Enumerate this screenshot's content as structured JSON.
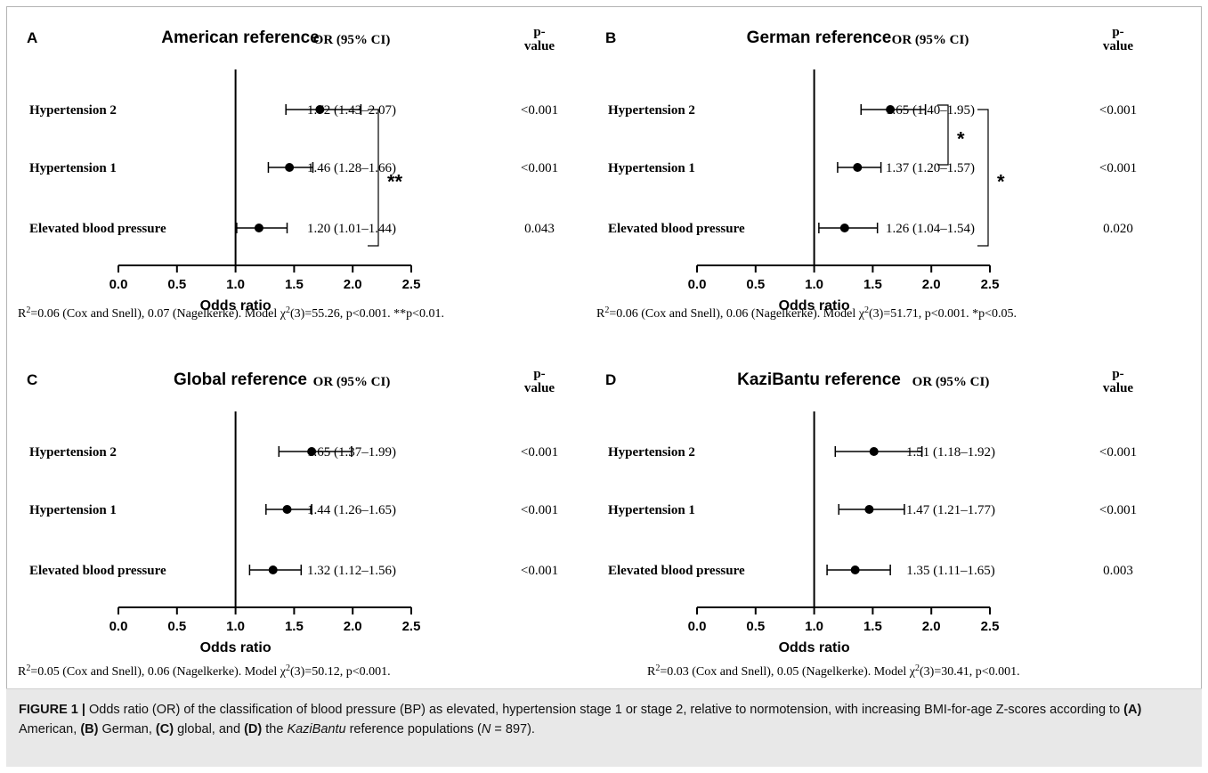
{
  "chart_data": [
    {
      "type": "forest",
      "panel_letter": "A",
      "title": "American reference",
      "col_or": "OR (95% CI)",
      "col_p": "p-value",
      "xlabel": "Odds ratio",
      "xlim": [
        0.0,
        2.5
      ],
      "xticks": [
        "0.0",
        "0.5",
        "1.0",
        "1.5",
        "2.0",
        "2.5"
      ],
      "reference_line": 1.0,
      "rows": [
        {
          "label": "Hypertension 2",
          "or": 1.72,
          "lo": 1.43,
          "hi": 2.07,
          "or_text": "1.72 (1.43–2.07)",
          "p_text": "<0.001"
        },
        {
          "label": "Hypertension 1",
          "or": 1.46,
          "lo": 1.28,
          "hi": 1.66,
          "or_text": "1.46 (1.28–1.66)",
          "p_text": "<0.001"
        },
        {
          "label": "Elevated blood pressure",
          "or": 1.2,
          "lo": 1.01,
          "hi": 1.44,
          "or_text": "1.20 (1.01–1.44)",
          "p_text": "0.043"
        }
      ],
      "brackets": [
        {
          "from_row": 0,
          "to_row": 2,
          "text": "**"
        }
      ],
      "note": {
        "pre": "R",
        "sup": "2",
        "mid": "=0.06 (Cox and Snell), 0.07 (Nagelkerke). Model χ",
        "sup2": "2",
        "post": "(3)=55.26, p<0.001. **p<0.01."
      }
    },
    {
      "type": "forest",
      "panel_letter": "B",
      "title": "German reference",
      "col_or": "OR (95% CI)",
      "col_p": "p-value",
      "xlabel": "Odds ratio",
      "xlim": [
        0.0,
        2.5
      ],
      "xticks": [
        "0.0",
        "0.5",
        "1.0",
        "1.5",
        "2.0",
        "2.5"
      ],
      "reference_line": 1.0,
      "rows": [
        {
          "label": "Hypertension 2",
          "or": 1.65,
          "lo": 1.4,
          "hi": 1.95,
          "or_text": "1.65 (1.40–1.95)",
          "p_text": "<0.001"
        },
        {
          "label": "Hypertension 1",
          "or": 1.37,
          "lo": 1.2,
          "hi": 1.57,
          "or_text": "1.37 (1.20–1.57)",
          "p_text": "<0.001"
        },
        {
          "label": "Elevated blood pressure",
          "or": 1.26,
          "lo": 1.04,
          "hi": 1.54,
          "or_text": "1.26 (1.04–1.54)",
          "p_text": "0.020"
        }
      ],
      "brackets": [
        {
          "from_row": 0,
          "to_row": 1,
          "text": "*"
        },
        {
          "from_row": 0,
          "to_row": 2,
          "text": "*"
        }
      ],
      "note": {
        "pre": "R",
        "sup": "2",
        "mid": "=0.06 (Cox and Snell), 0.06 (Nagelkerke). Model χ",
        "sup2": "2",
        "post": "(3)=51.71, p<0.001. *p<0.05."
      }
    },
    {
      "type": "forest",
      "panel_letter": "C",
      "title": "Global reference",
      "col_or": "OR (95% CI)",
      "col_p": "p-value",
      "xlabel": "Odds ratio",
      "xlim": [
        0.0,
        2.5
      ],
      "xticks": [
        "0.0",
        "0.5",
        "1.0",
        "1.5",
        "2.0",
        "2.5"
      ],
      "reference_line": 1.0,
      "rows": [
        {
          "label": "Hypertension 2",
          "or": 1.65,
          "lo": 1.37,
          "hi": 1.99,
          "or_text": "1.65 (1.37–1.99)",
          "p_text": "<0.001"
        },
        {
          "label": "Hypertension 1",
          "or": 1.44,
          "lo": 1.26,
          "hi": 1.65,
          "or_text": "1.44 (1.26–1.65)",
          "p_text": "<0.001"
        },
        {
          "label": "Elevated blood pressure",
          "or": 1.32,
          "lo": 1.12,
          "hi": 1.56,
          "or_text": "1.32 (1.12–1.56)",
          "p_text": "<0.001"
        }
      ],
      "brackets": [],
      "note": {
        "pre": "R",
        "sup": "2",
        "mid": "=0.05 (Cox and Snell), 0.06 (Nagelkerke). Model χ",
        "sup2": "2",
        "post": "(3)=50.12, p<0.001."
      }
    },
    {
      "type": "forest",
      "panel_letter": "D",
      "title": "KaziBantu reference",
      "col_or": "OR (95% CI)",
      "col_p": "p-value",
      "xlabel": "Odds ratio",
      "xlim": [
        0.0,
        2.5
      ],
      "xticks": [
        "0.0",
        "0.5",
        "1.0",
        "1.5",
        "2.0",
        "2.5"
      ],
      "reference_line": 1.0,
      "rows": [
        {
          "label": "Hypertension 2",
          "or": 1.51,
          "lo": 1.18,
          "hi": 1.92,
          "or_text": "1.51 (1.18–1.92)",
          "p_text": "<0.001"
        },
        {
          "label": "Hypertension 1",
          "or": 1.47,
          "lo": 1.21,
          "hi": 1.77,
          "or_text": "1.47 (1.21–1.77)",
          "p_text": "<0.001"
        },
        {
          "label": "Elevated blood pressure",
          "or": 1.35,
          "lo": 1.11,
          "hi": 1.65,
          "or_text": "1.35 (1.11–1.65)",
          "p_text": "0.003"
        }
      ],
      "brackets": [],
      "note": {
        "pre": "R",
        "sup": "2",
        "mid": "=0.03 (Cox and Snell), 0.05 (Nagelkerke). Model χ",
        "sup2": "2",
        "post": "(3)=30.41, p<0.001."
      }
    }
  ],
  "caption": {
    "figure_label": "FIGURE 1 |",
    "text_1": " Odds ratio (OR) of the classification of blood pressure (BP) as elevated, hypertension stage 1 or stage 2, relative to normotension, with increasing BMI-for-age Z-scores according to ",
    "a_label": "(A)",
    "text_2": " American, ",
    "b_label": "(B)",
    "text_3": " German, ",
    "c_label": "(C)",
    "text_4": " global, and ",
    "d_label": "(D)",
    "text_5": " the ",
    "italic_name": "KaziBantu",
    "text_6": " reference populations (",
    "n_italic": "N",
    "text_7": " = 897)."
  }
}
